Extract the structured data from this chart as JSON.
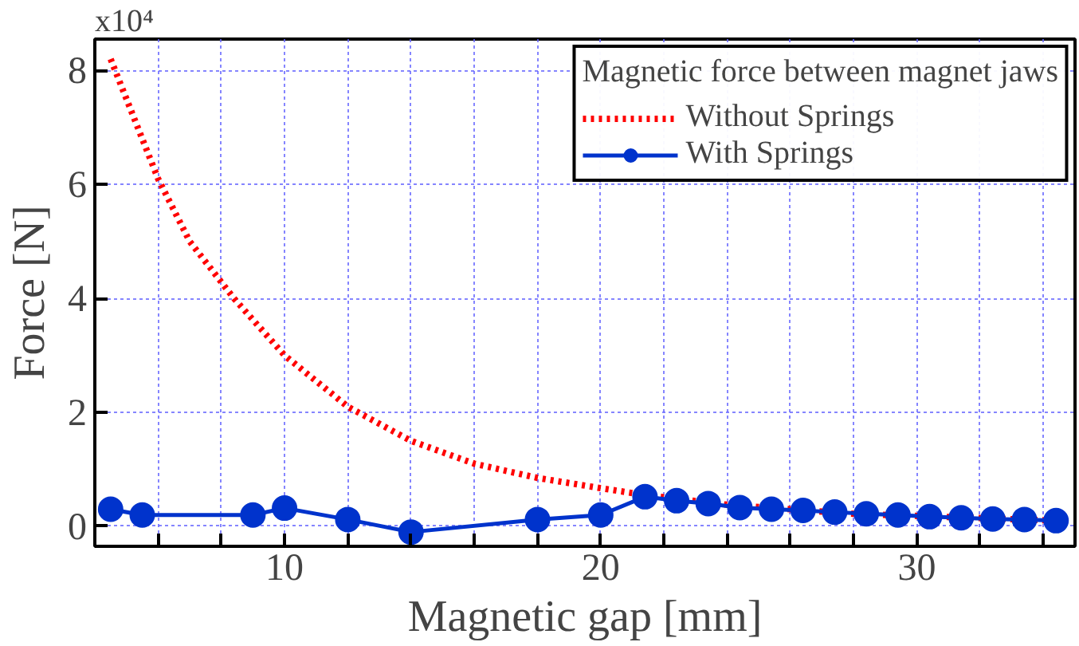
{
  "chart_data": {
    "type": "line",
    "xlabel": "Magnetic gap [mm]",
    "ylabel": "Force [N]",
    "legend_title": "Magnetic force between magnet jaws",
    "legend": "top right",
    "grid": true,
    "xlim": [
      4,
      35
    ],
    "ylim": [
      -0.35,
      8.55
    ],
    "annotations": [
      "x10⁴"
    ],
    "xticks": [
      {
        "value": 6,
        "label": null
      },
      {
        "value": 8,
        "label": null
      },
      10,
      {
        "value": 12,
        "label": null
      },
      {
        "value": 14,
        "label": null
      },
      {
        "value": 16,
        "label": null
      },
      {
        "value": 18,
        "label": null
      },
      20,
      {
        "value": 22,
        "label": null
      },
      {
        "value": 24,
        "label": null
      },
      {
        "value": 26,
        "label": null
      },
      {
        "value": 28,
        "label": null
      },
      30,
      {
        "value": 32,
        "label": null
      },
      {
        "value": 34,
        "label": null
      }
    ],
    "yticks": [
      0,
      2,
      4,
      6,
      8
    ],
    "series": [
      {
        "name": "Without Springs",
        "color": "#ff0000",
        "line_style": "dotted",
        "marker": "none",
        "x": [
          4.5,
          5,
          6,
          7,
          8.4,
          10,
          12,
          14,
          16,
          18,
          20,
          21.4,
          24,
          28,
          34.4
        ],
        "values": [
          8.2,
          7.5,
          6.1,
          5.0,
          4.0,
          3.0,
          2.1,
          1.5,
          1.1,
          0.85,
          0.67,
          0.55,
          0.38,
          0.22,
          0.1
        ]
      },
      {
        "name": "With Springs",
        "color": "#0033cc",
        "line_style": "solid",
        "marker": "circle",
        "x": [
          4.5,
          5.5,
          9,
          10,
          12,
          14,
          18,
          20,
          21.4,
          22.4,
          23.4,
          24.4,
          25.4,
          26.4,
          27.4,
          28.4,
          29.4,
          30.4,
          31.4,
          32.4,
          33.4,
          34.4
        ],
        "values": [
          0.3,
          0.2,
          0.2,
          0.32,
          0.12,
          -0.1,
          0.12,
          0.2,
          0.52,
          0.45,
          0.4,
          0.33,
          0.3,
          0.28,
          0.25,
          0.22,
          0.2,
          0.17,
          0.15,
          0.13,
          0.12,
          0.1
        ]
      }
    ]
  }
}
